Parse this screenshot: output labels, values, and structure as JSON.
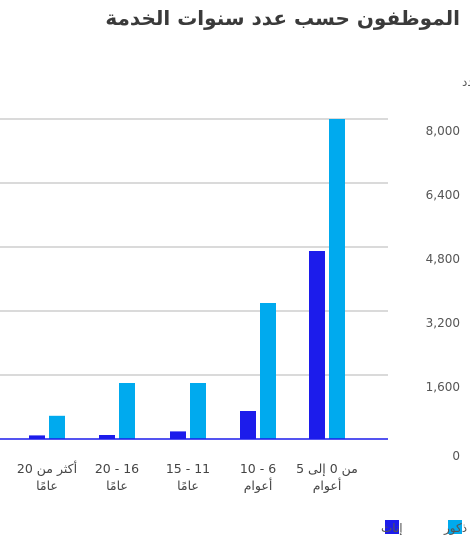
{
  "chart_data": {
    "type": "bar",
    "title": "الموظفون حسب عدد سنوات الخدمة",
    "ylabel": "العدد",
    "xlabel": "",
    "categories": [
      [
        "من 0 إلى 5",
        "أعوام"
      ],
      [
        "6 - 10",
        "أعوام"
      ],
      [
        "11 - 15",
        "عامًا"
      ],
      [
        "16 - 20",
        "عامًا"
      ],
      [
        "أكثر من 20",
        "عامًا"
      ]
    ],
    "series": [
      {
        "name": "ذكور",
        "color": "#00aaee",
        "values": [
          8000,
          3400,
          1400,
          1400,
          580
        ]
      },
      {
        "name": "إناث",
        "color": "#1c1ceb",
        "values": [
          4700,
          700,
          190,
          100,
          90
        ]
      }
    ],
    "ylim": [
      0,
      8000
    ],
    "yticks": [
      0,
      1600,
      3200,
      4800,
      6400,
      8000
    ],
    "ytick_labels": [
      "0",
      "1,600",
      "3,200",
      "4,800",
      "6,400",
      "8,000"
    ],
    "grid": true,
    "legend_position": "bottom-right"
  }
}
